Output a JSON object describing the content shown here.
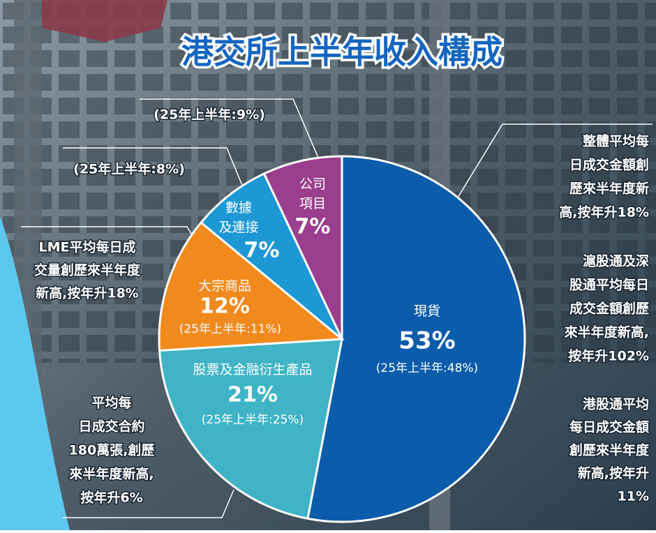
{
  "chart_data": {
    "type": "pie",
    "title": "港交所上半年收入構成",
    "categories": [
      "現貨",
      "股票及金融衍生產品",
      "大宗商品",
      "數據\n及連接",
      "公司\n項目"
    ],
    "values": [
      53,
      21,
      12,
      7,
      7
    ],
    "value_labels": [
      "53%",
      "21%",
      "12%",
      "7%",
      "7%"
    ],
    "prior_labels": [
      "(25年上半年:48%)",
      "(25年上半年:25%)",
      "(25年上半年:11%)",
      "(25年上半年:8%)",
      "(25年上半年:9%)"
    ],
    "colors": [
      "#0b5cab",
      "#40b4c6",
      "#f2891c",
      "#1d98d5",
      "#9a3f8d"
    ],
    "annotations": [
      [
        "整體平均每",
        "日成交金額創",
        "歷來半年度新",
        "高,按年升18%"
      ],
      [
        "滬股通及深",
        "股通平均每日",
        "成交金額創歷",
        "來半年度新高,",
        "按年升102%"
      ],
      [
        "港股通平均",
        "每日成交金額",
        "創歷來半年度",
        "新高,按年升",
        "11%"
      ],
      [
        "平均每",
        "日成交合約",
        "180萬張,創歷",
        "來半年度新高,",
        "按年升6%"
      ],
      [
        "LME平均每日成",
        "交量創歷來半年度",
        "新高,按年升18%"
      ]
    ]
  }
}
